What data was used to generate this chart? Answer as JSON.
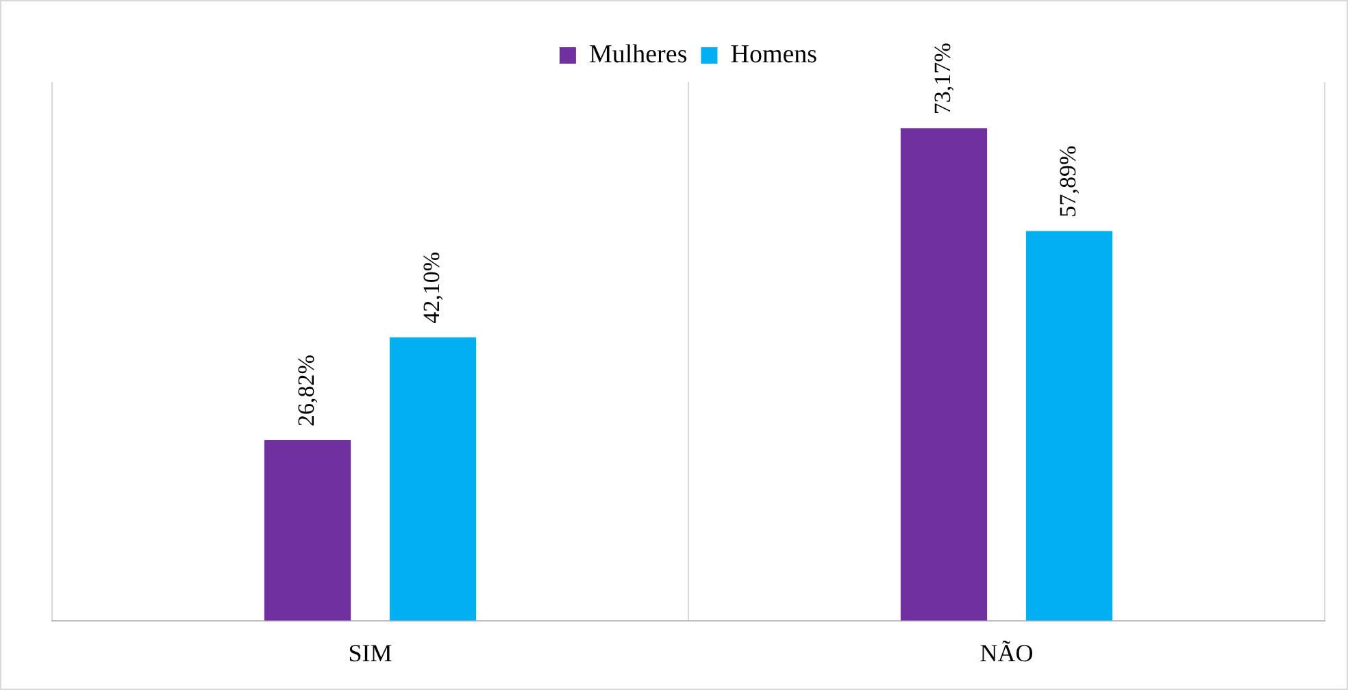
{
  "chart_data": {
    "type": "bar",
    "categories": [
      "SIM",
      "NÃO"
    ],
    "series": [
      {
        "name": "Mulheres",
        "color": "#7030a0",
        "values": [
          26.82,
          73.17
        ],
        "value_labels": [
          "26,82%",
          "73,17%"
        ]
      },
      {
        "name": "Homens",
        "color": "#00b0f0",
        "values": [
          42.1,
          57.89
        ],
        "value_labels": [
          "42,10%",
          "57,89%"
        ]
      }
    ],
    "ylim": [
      0,
      80
    ],
    "grid": "x",
    "legend": "top",
    "tick_labels": "x"
  }
}
